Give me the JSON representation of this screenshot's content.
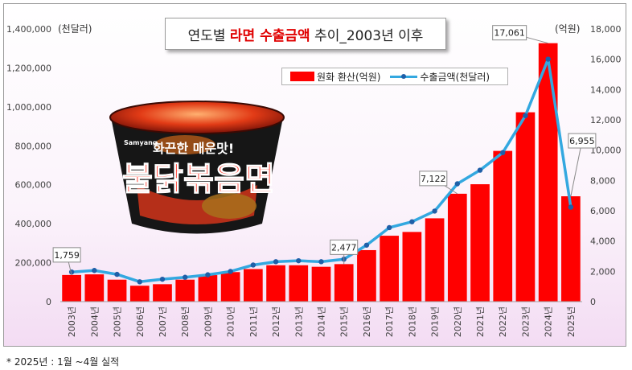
{
  "chart_data": {
    "type": "bar+line",
    "title_parts": [
      "연도별 ",
      "라면 수출금액",
      " 추이_2003년 이후"
    ],
    "left_unit": "(천달러)",
    "right_unit": "(억원)",
    "categories": [
      "2003년",
      "2004년",
      "2005년",
      "2006년",
      "2007년",
      "2008년",
      "2009년",
      "2010년",
      "2011년",
      "2012년",
      "2013년",
      "2014년",
      "2015년",
      "2016년",
      "2017년",
      "2018년",
      "2019년",
      "2020년",
      "2021년",
      "2022년",
      "2023년",
      "2024년",
      "2025년"
    ],
    "left_axis": {
      "min": 0,
      "max": 1400000,
      "ticks": [
        "0",
        "200,000",
        "400,000",
        "600,000",
        "800,000",
        "1,000,000",
        "1,200,000",
        "1,400,000"
      ]
    },
    "right_axis": {
      "min": 0,
      "max": 18000,
      "ticks": [
        "0",
        "2,000",
        "4,000",
        "6,000",
        "8,000",
        "10,000",
        "12,000",
        "14,000",
        "16,000",
        "18,000"
      ]
    },
    "series": [
      {
        "name": "원화 환산(억원)",
        "kind": "bar",
        "axis": "right",
        "color": "#ff0000",
        "values": [
          1759,
          1800,
          1450,
          1050,
          1150,
          1450,
          1750,
          1950,
          2150,
          2400,
          2400,
          2300,
          2477,
          3400,
          4350,
          4600,
          5500,
          7122,
          7750,
          9950,
          12500,
          17061,
          6955
        ]
      },
      {
        "name": "수출금액(천달러)",
        "kind": "line",
        "axis": "left",
        "color": "#33a8e0",
        "marker_color": "#1f5fa8",
        "values": [
          152000,
          160000,
          140000,
          102000,
          115000,
          125000,
          138000,
          155000,
          188000,
          205000,
          210000,
          205000,
          218000,
          290000,
          380000,
          410000,
          465000,
          605000,
          675000,
          765000,
          955000,
          1245000,
          485000
        ]
      }
    ],
    "data_labels": [
      {
        "index": 0,
        "text": "1,759"
      },
      {
        "index": 12,
        "text": "2,477"
      },
      {
        "index": 17,
        "text": "7,122"
      },
      {
        "index": 21,
        "text": "17,061"
      },
      {
        "index": 22,
        "text": "6,955"
      }
    ],
    "legend_position": "top-right, below title",
    "grid": false
  },
  "product_image": {
    "description_icon": "ramen-cup-image",
    "lid_text": "화끈한 매운맛!",
    "brand_text": "불닭볶음면",
    "maker_text": "Samyang"
  },
  "footnote": "* 2025년 : 1월 ~4월 실적"
}
